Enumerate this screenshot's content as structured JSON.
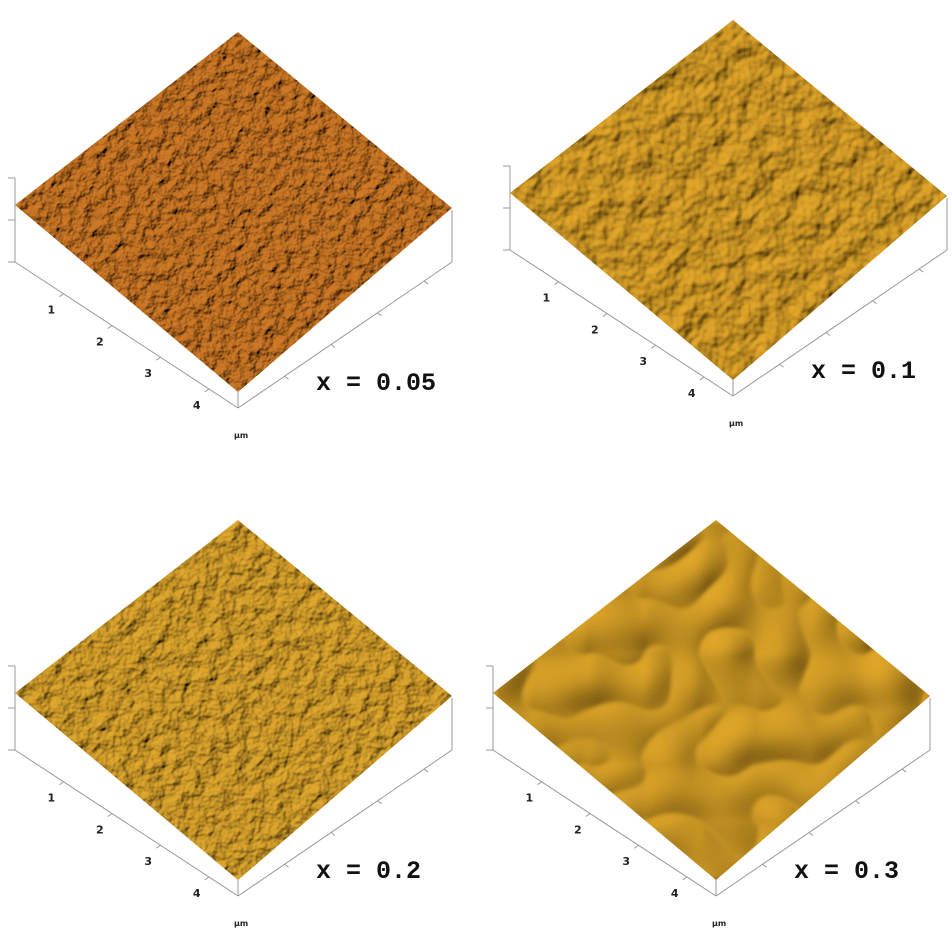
{
  "panels": [
    {
      "label": "x = 0.05",
      "ticks": [
        "1",
        "2",
        "3",
        "4"
      ],
      "unit": "µm"
    },
    {
      "label": "x = 0.1",
      "ticks": [
        "1",
        "2",
        "3",
        "4"
      ],
      "unit": "µm"
    },
    {
      "label": "x = 0.2",
      "ticks": [
        "1",
        "2",
        "3",
        "4"
      ],
      "unit": "µm"
    },
    {
      "label": "x = 0.3",
      "ticks": [
        "1",
        "2",
        "3",
        "4"
      ],
      "unit": "µm"
    }
  ]
}
